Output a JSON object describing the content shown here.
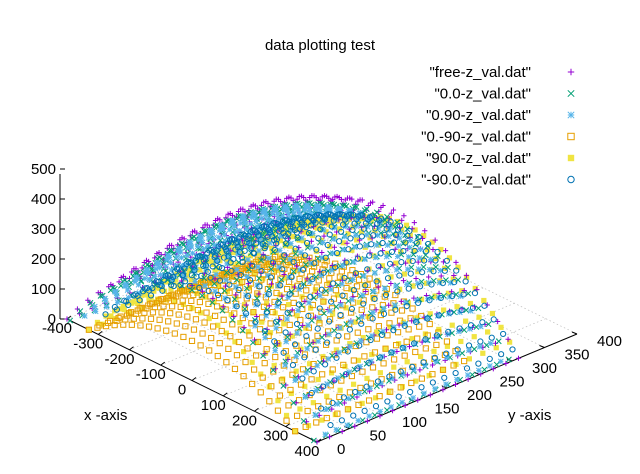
{
  "chart_data": {
    "type": "scatter",
    "title": "data plotting test",
    "xlabel": "x -axis",
    "ylabel": "y -axis",
    "zlabel": "",
    "x_ticks": [
      "-400",
      "-300",
      "-200",
      "-100",
      "0",
      "100",
      "200",
      "300",
      "400"
    ],
    "y_ticks": [
      "0",
      "50",
      "100",
      "150",
      "200",
      "250",
      "300",
      "350",
      "400"
    ],
    "z_ticks": [
      "0",
      "100",
      "200",
      "300",
      "400",
      "500"
    ],
    "xlim": [
      -400,
      400
    ],
    "ylim": [
      0,
      400
    ],
    "zlim": [
      0,
      500
    ],
    "grid": true,
    "legend_position": "top-right",
    "series": [
      {
        "name": "\"free-z_val.dat\"",
        "marker": "plus",
        "color": "#9400d3",
        "z_peak": 420,
        "y_start": 0,
        "y_end": 310,
        "x_half": 400,
        "back_shift": 0
      },
      {
        "name": "\"0.0-z_val.dat\"",
        "marker": "cross",
        "color": "#009e73",
        "z_peak": 400,
        "y_start": 0,
        "y_end": 300,
        "x_half": 390,
        "back_shift": 0
      },
      {
        "name": "\"0.90-z_val.dat\"",
        "marker": "star",
        "color": "#56b4e9",
        "z_peak": 395,
        "y_start": 20,
        "y_end": 290,
        "x_half": 385,
        "back_shift": 0
      },
      {
        "name": "\"0.-90-z_val.dat\"",
        "marker": "box",
        "color": "#e69f00",
        "z_peak": 175,
        "y_start": 0,
        "y_end": 260,
        "x_half": 330,
        "back_shift": 0
      },
      {
        "name": "\"90.0-z_val.dat\"",
        "marker": "filled-box",
        "color": "#f0e442",
        "z_peak": 320,
        "y_start": 0,
        "y_end": 330,
        "x_half": 330,
        "back_shift": 0
      },
      {
        "name": "\"-90.0-z_val.dat\"",
        "marker": "circle",
        "color": "#0072b2",
        "z_peak": 330,
        "y_start": 40,
        "y_end": 320,
        "x_half": 360,
        "back_shift": 0
      }
    ]
  }
}
